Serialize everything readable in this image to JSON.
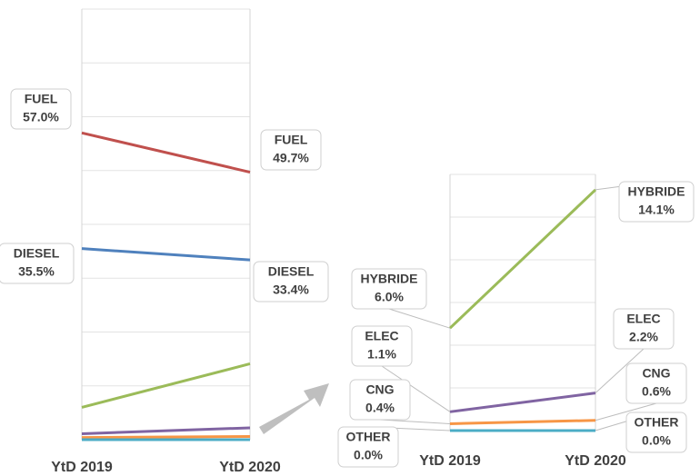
{
  "chart_data": [
    {
      "type": "slope",
      "categories": [
        "YtD 2019",
        "YtD 2020"
      ],
      "ylim": [
        0,
        80
      ],
      "yticks": [
        0,
        10,
        20,
        30,
        40,
        50,
        60,
        70,
        80
      ],
      "grid": true,
      "series": [
        {
          "name": "FUEL",
          "color": "#c0504d",
          "values": [
            57.0,
            49.7
          ],
          "value_labels": [
            "57.0%",
            "49.7%"
          ]
        },
        {
          "name": "DIESEL",
          "color": "#4f81bd",
          "values": [
            35.5,
            33.4
          ],
          "value_labels": [
            "35.5%",
            "33.4%"
          ]
        },
        {
          "color": "#9bbb59",
          "values": [
            6.0,
            14.1
          ]
        },
        {
          "color": "#8064a2",
          "values": [
            1.1,
            2.2
          ]
        },
        {
          "color": "#f79646",
          "values": [
            0.4,
            0.6
          ]
        },
        {
          "color": "#4bacc6",
          "values": [
            0.0,
            0.0
          ]
        }
      ]
    },
    {
      "type": "slope",
      "categories": [
        "YtD 2019",
        "YtD 2020"
      ],
      "ylim": [
        0,
        15
      ],
      "yticks": [
        0,
        2.5,
        5,
        7.5,
        10,
        12.5,
        15
      ],
      "grid": true,
      "series": [
        {
          "name": "HYBRIDE",
          "color": "#9bbb59",
          "values": [
            6.0,
            14.1
          ],
          "value_labels": [
            "6.0%",
            "14.1%"
          ]
        },
        {
          "name": "ELEC",
          "color": "#8064a2",
          "values": [
            1.1,
            2.2
          ],
          "value_labels": [
            "1.1%",
            "2.2%"
          ]
        },
        {
          "name": "CNG",
          "color": "#f79646",
          "values": [
            0.4,
            0.6
          ],
          "value_labels": [
            "0.4%",
            "0.6%"
          ]
        },
        {
          "name": "OTHER",
          "color": "#4bacc6",
          "values": [
            0.0,
            0.0
          ],
          "value_labels": [
            "0.0%",
            "0.0%"
          ]
        }
      ]
    }
  ]
}
